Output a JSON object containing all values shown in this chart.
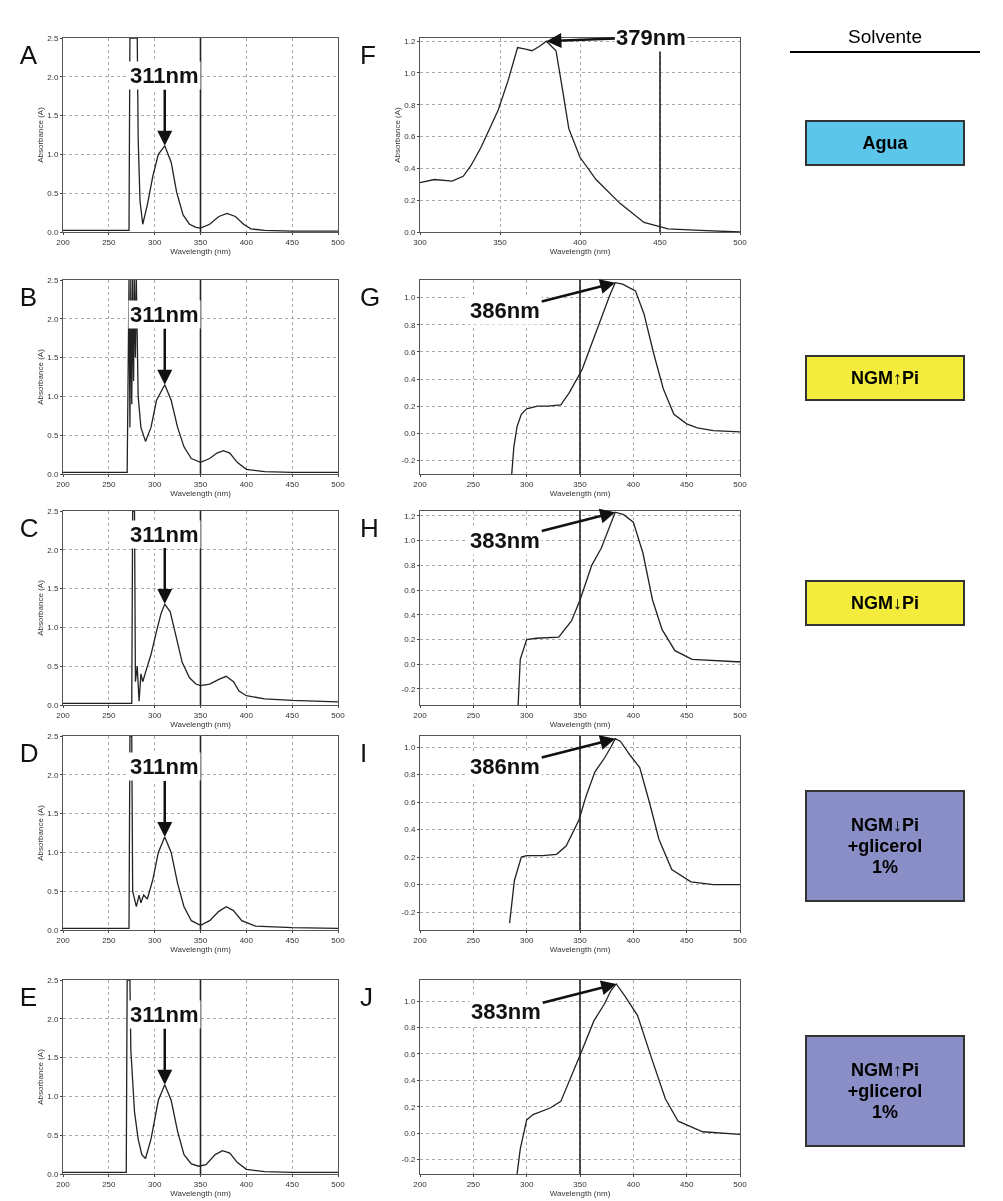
{
  "chart_data": [
    {
      "type": "line",
      "title": "A",
      "xlabel": "Wavelength (nm)",
      "ylabel": "Absorbance (A)",
      "xlim": [
        200,
        500
      ],
      "ylim": [
        0,
        2.5
      ],
      "xticks": [
        200,
        250,
        300,
        350,
        400,
        450,
        500
      ],
      "yticks": [
        {
          "value": 0,
          "label": "0.0"
        },
        0.5,
        {
          "value": 1,
          "label": "1.0"
        },
        1.5,
        {
          "value": 2,
          "label": "2.0"
        },
        2.5
      ],
      "grid": true,
      "marker": "none",
      "line_style": "solid",
      "ref_lines": [
        {
          "axis": "x",
          "value": 350,
          "color": "#222222"
        }
      ],
      "annotations": [
        {
          "text": "311nm",
          "x": 311,
          "y": 1.11
        }
      ],
      "series": [
        {
          "color": "#222222",
          "x": [
            200,
            230,
            260,
            272,
            273,
            274,
            281,
            282,
            284,
            287,
            292,
            298,
            304,
            311,
            318,
            324,
            331,
            338,
            345,
            350,
            360,
            370,
            379,
            388,
            397,
            405,
            420,
            450,
            500
          ],
          "values": [
            0.02,
            0.02,
            0.02,
            0.02,
            2.5,
            2.5,
            2.5,
            1.2,
            0.4,
            0.1,
            0.35,
            0.72,
            1.0,
            1.11,
            0.9,
            0.51,
            0.22,
            0.1,
            0.06,
            0.05,
            0.1,
            0.2,
            0.24,
            0.2,
            0.1,
            0.04,
            0.02,
            0.01,
            0.01
          ]
        }
      ]
    },
    {
      "type": "line",
      "title": "B",
      "xlabel": "Wavelength (nm)",
      "ylabel": "Absorbance (A)",
      "xlim": [
        200,
        500
      ],
      "ylim": [
        0,
        2.5
      ],
      "xticks": [
        200,
        250,
        300,
        350,
        400,
        450,
        500
      ],
      "yticks": [
        {
          "value": 0,
          "label": "0.0"
        },
        0.5,
        {
          "value": 1,
          "label": "1.0"
        },
        1.5,
        {
          "value": 2,
          "label": "2.0"
        },
        2.5
      ],
      "grid": true,
      "marker": "none",
      "line_style": "solid",
      "ref_lines": [
        {
          "axis": "x",
          "value": 350,
          "color": "#222222"
        }
      ],
      "annotations": [
        {
          "text": "311nm",
          "x": 311,
          "y": 1.15
        }
      ],
      "series": [
        {
          "color": "#222222",
          "x": [
            200,
            240,
            270,
            272,
            273,
            274,
            275,
            276,
            277,
            278,
            279,
            280,
            282,
            285,
            290,
            296,
            302,
            311,
            318,
            325,
            332,
            340,
            350,
            360,
            368,
            375,
            382,
            390,
            400,
            420,
            450,
            500
          ],
          "values": [
            0.02,
            0.02,
            0.02,
            2.5,
            0.6,
            2.5,
            0.9,
            2.5,
            1.2,
            2.5,
            1.5,
            2.5,
            1.0,
            0.6,
            0.42,
            0.6,
            0.95,
            1.15,
            0.95,
            0.6,
            0.35,
            0.2,
            0.15,
            0.2,
            0.27,
            0.3,
            0.27,
            0.15,
            0.06,
            0.03,
            0.02,
            0.02
          ]
        }
      ]
    },
    {
      "type": "line",
      "title": "C",
      "xlabel": "Wavelength (nm)",
      "ylabel": "Absorbance (A)",
      "xlim": [
        200,
        500
      ],
      "ylim": [
        0,
        2.5
      ],
      "xticks": [
        200,
        250,
        300,
        350,
        400,
        450,
        500
      ],
      "yticks": [
        {
          "value": 0,
          "label": "0.0"
        },
        0.5,
        {
          "value": 1,
          "label": "1.0"
        },
        1.5,
        {
          "value": 2,
          "label": "2.0"
        },
        2.5
      ],
      "grid": true,
      "marker": "none",
      "line_style": "solid",
      "ref_lines": [
        {
          "axis": "x",
          "value": 350,
          "color": "#222222"
        }
      ],
      "annotations": [
        {
          "text": "311nm",
          "x": 311,
          "y": 1.3
        }
      ],
      "series": [
        {
          "color": "#222222",
          "x": [
            200,
            240,
            275,
            276,
            278,
            279,
            281,
            283,
            285,
            287,
            290,
            296,
            302,
            307,
            311,
            317,
            323,
            330,
            338,
            345,
            350,
            360,
            370,
            378,
            386,
            392,
            400,
            420,
            450,
            500
          ],
          "values": [
            0.02,
            0.02,
            0.02,
            2.5,
            2.5,
            0.3,
            0.5,
            0.05,
            0.4,
            0.3,
            0.42,
            0.65,
            0.95,
            1.18,
            1.3,
            1.2,
            0.9,
            0.55,
            0.35,
            0.27,
            0.25,
            0.27,
            0.33,
            0.37,
            0.3,
            0.18,
            0.12,
            0.08,
            0.06,
            0.04
          ]
        }
      ]
    },
    {
      "type": "line",
      "title": "D",
      "xlabel": "Wavelength (nm)",
      "ylabel": "Absorbance (A)",
      "xlim": [
        200,
        500
      ],
      "ylim": [
        0,
        2.5
      ],
      "xticks": [
        200,
        250,
        300,
        350,
        400,
        450,
        500
      ],
      "yticks": [
        {
          "value": 0,
          "label": "0.0"
        },
        0.5,
        {
          "value": 1,
          "label": "1.0"
        },
        1.5,
        {
          "value": 2,
          "label": "2.0"
        },
        2.5
      ],
      "grid": true,
      "marker": "none",
      "line_style": "solid",
      "ref_lines": [
        {
          "axis": "x",
          "value": 350,
          "color": "#222222"
        }
      ],
      "annotations": [
        {
          "text": "311nm",
          "x": 311,
          "y": 1.2
        }
      ],
      "series": [
        {
          "color": "#222222",
          "x": [
            200,
            240,
            272,
            273,
            275,
            276,
            280,
            283,
            285,
            288,
            292,
            298,
            304,
            311,
            318,
            325,
            332,
            340,
            350,
            360,
            370,
            378,
            386,
            395,
            410,
            450,
            500
          ],
          "values": [
            0.02,
            0.02,
            0.02,
            2.5,
            2.5,
            0.5,
            0.3,
            0.45,
            0.35,
            0.45,
            0.4,
            0.65,
            1.0,
            1.2,
            1.0,
            0.6,
            0.3,
            0.12,
            0.06,
            0.12,
            0.24,
            0.3,
            0.25,
            0.12,
            0.05,
            0.03,
            0.02
          ]
        }
      ]
    },
    {
      "type": "line",
      "title": "E",
      "xlabel": "Wavelength (nm)",
      "ylabel": "Absorbance (A)",
      "xlim": [
        200,
        500
      ],
      "ylim": [
        0,
        2.5
      ],
      "xticks": [
        200,
        250,
        300,
        350,
        400,
        450,
        500
      ],
      "yticks": [
        {
          "value": 0,
          "label": "0.0"
        },
        0.5,
        {
          "value": 1,
          "label": "1.0"
        },
        1.5,
        {
          "value": 2,
          "label": "2.0"
        },
        2.5
      ],
      "grid": true,
      "marker": "none",
      "line_style": "solid",
      "ref_lines": [
        {
          "axis": "x",
          "value": 350,
          "color": "#222222"
        }
      ],
      "annotations": [
        {
          "text": "311nm",
          "x": 311,
          "y": 1.15
        }
      ],
      "series": [
        {
          "color": "#222222",
          "x": [
            200,
            240,
            269,
            270,
            273,
            274,
            278,
            282,
            286,
            290,
            296,
            304,
            311,
            318,
            325,
            332,
            340,
            348,
            356,
            366,
            374,
            382,
            390,
            400,
            420,
            450,
            500
          ],
          "values": [
            0.02,
            0.02,
            0.02,
            2.5,
            2.5,
            1.6,
            0.8,
            0.45,
            0.25,
            0.2,
            0.45,
            0.95,
            1.15,
            0.95,
            0.55,
            0.25,
            0.13,
            0.1,
            0.12,
            0.25,
            0.3,
            0.27,
            0.15,
            0.06,
            0.03,
            0.02,
            0.02
          ]
        }
      ]
    },
    {
      "type": "line",
      "title": "F",
      "xlabel": "Wavelength (nm)",
      "ylabel": "Absorbance (A)",
      "xlim": [
        300,
        500
      ],
      "ylim": [
        0,
        1.22
      ],
      "xticks": [
        300,
        350,
        400,
        450,
        500
      ],
      "yticks": [
        {
          "value": 0,
          "label": "0.0"
        },
        0.2,
        0.4,
        0.6,
        0.8,
        {
          "value": 1,
          "label": "1.0"
        },
        1.2
      ],
      "grid": true,
      "marker": "none",
      "line_style": "solid",
      "ref_lines": [
        {
          "axis": "x",
          "value": 450,
          "color": "#222222"
        }
      ],
      "annotations": [
        {
          "text": "379nm",
          "x": 379,
          "y": 1.2
        }
      ],
      "series": [
        {
          "color": "#222222",
          "x": [
            300,
            309,
            320,
            327,
            332,
            338,
            344,
            349,
            355,
            361,
            366,
            370,
            375,
            379,
            385,
            389,
            393,
            400,
            410,
            425,
            440,
            455,
            475,
            500
          ],
          "values": [
            0.31,
            0.33,
            0.32,
            0.35,
            0.42,
            0.53,
            0.66,
            0.77,
            0.95,
            1.16,
            1.15,
            1.14,
            1.17,
            1.2,
            1.14,
            0.9,
            0.65,
            0.47,
            0.33,
            0.18,
            0.06,
            0.02,
            0.01,
            0.0
          ]
        }
      ]
    },
    {
      "type": "line",
      "title": "G",
      "xlabel": "Wavelength (nm)",
      "xlim": [
        200,
        500
      ],
      "ylim": [
        -0.3,
        1.13
      ],
      "xticks": [
        200,
        250,
        300,
        350,
        400,
        450,
        500
      ],
      "yticks": [
        -0.2,
        {
          "value": 0,
          "label": "0.0"
        },
        0.2,
        0.4,
        0.6,
        0.8,
        {
          "value": 1,
          "label": "1.0"
        }
      ],
      "grid": true,
      "marker": "none",
      "line_style": "solid",
      "ref_lines": [
        {
          "axis": "x",
          "value": 350,
          "color": "#222222"
        }
      ],
      "annotations": [
        {
          "text": "386nm",
          "x": 383,
          "y": 1.11
        }
      ],
      "series": [
        {
          "color": "#222222",
          "x": [
            286,
            288,
            291,
            295,
            300,
            310,
            320,
            332,
            340,
            352,
            360,
            370,
            378,
            383,
            390,
            397,
            402,
            410,
            419,
            428,
            438,
            450,
            460,
            475,
            500
          ],
          "values": [
            -0.3,
            -0.1,
            0.05,
            0.14,
            0.18,
            0.2,
            0.2,
            0.21,
            0.3,
            0.47,
            0.64,
            0.85,
            1.02,
            1.11,
            1.1,
            1.07,
            1.05,
            0.88,
            0.59,
            0.33,
            0.14,
            0.07,
            0.04,
            0.02,
            0.01
          ]
        }
      ]
    },
    {
      "type": "line",
      "title": "H",
      "xlabel": "Wavelength (nm)",
      "xlim": [
        200,
        500
      ],
      "ylim": [
        -0.33,
        1.24
      ],
      "xticks": [
        200,
        250,
        300,
        350,
        400,
        450,
        500
      ],
      "yticks": [
        -0.2,
        {
          "value": 0,
          "label": "0.0"
        },
        0.2,
        0.4,
        0.6,
        0.8,
        {
          "value": 1,
          "label": "1.0"
        },
        1.2
      ],
      "grid": true,
      "marker": "none",
      "line_style": "solid",
      "ref_lines": [
        {
          "axis": "x",
          "value": 350,
          "color": "#222222"
        }
      ],
      "annotations": [
        {
          "text": "383nm",
          "x": 383,
          "y": 1.23
        }
      ],
      "series": [
        {
          "color": "#222222",
          "x": [
            292,
            294,
            300,
            309,
            330,
            342,
            350,
            361,
            370,
            383,
            391,
            400,
            409,
            418,
            427,
            439,
            455,
            497,
            500
          ],
          "values": [
            -0.33,
            0.04,
            0.2,
            0.21,
            0.22,
            0.35,
            0.52,
            0.8,
            0.94,
            1.23,
            1.21,
            1.15,
            0.9,
            0.52,
            0.28,
            0.11,
            0.04,
            0.02,
            0.02
          ]
        }
      ]
    },
    {
      "type": "line",
      "title": "I",
      "xlabel": "Wavelength (nm)",
      "xlim": [
        200,
        500
      ],
      "ylim": [
        -0.33,
        1.08
      ],
      "xticks": [
        200,
        250,
        300,
        350,
        400,
        450,
        500
      ],
      "yticks": [
        -0.2,
        {
          "value": 0,
          "label": "0.0"
        },
        0.2,
        0.4,
        0.6,
        0.8,
        {
          "value": 1,
          "label": "1.0"
        }
      ],
      "grid": true,
      "marker": "none",
      "line_style": "solid",
      "ref_lines": [
        {
          "axis": "x",
          "value": 350,
          "color": "#222222"
        }
      ],
      "annotations": [
        {
          "text": "386nm",
          "x": 383,
          "y": 1.06
        }
      ],
      "series": [
        {
          "color": "#222222",
          "x": [
            284,
            288.5,
            295,
            300,
            315,
            328,
            337,
            349,
            356,
            364,
            373,
            379,
            383,
            388,
            397,
            406,
            415,
            424,
            436,
            454,
            475,
            500
          ],
          "values": [
            -0.28,
            0.03,
            0.2,
            0.21,
            0.21,
            0.22,
            0.28,
            0.47,
            0.65,
            0.82,
            0.92,
            1.0,
            1.06,
            1.04,
            0.94,
            0.85,
            0.6,
            0.33,
            0.11,
            0.02,
            0.0,
            0.0
          ]
        }
      ]
    },
    {
      "type": "line",
      "title": "J",
      "xlabel": "Wavelength (nm)",
      "xlim": [
        200,
        500
      ],
      "ylim": [
        -0.31,
        1.16
      ],
      "xticks": [
        200,
        250,
        300,
        350,
        400,
        450,
        500
      ],
      "yticks": [
        -0.2,
        {
          "value": 0,
          "label": "0.0"
        },
        0.2,
        0.4,
        0.6,
        0.8,
        {
          "value": 1,
          "label": "1.0"
        }
      ],
      "grid": true,
      "marker": "none",
      "line_style": "solid",
      "ref_lines": [
        {
          "axis": "x",
          "value": 350,
          "color": "#222222"
        }
      ],
      "annotations": [
        {
          "text": "383nm",
          "x": 384,
          "y": 1.13
        }
      ],
      "series": [
        {
          "color": "#222222",
          "x": [
            291,
            294,
            300,
            306,
            322,
            332,
            350,
            363,
            373,
            379,
            384,
            392,
            404,
            417,
            430,
            442,
            465,
            500
          ],
          "values": [
            -0.31,
            -0.12,
            0.1,
            0.14,
            0.19,
            0.24,
            0.59,
            0.85,
            0.98,
            1.08,
            1.13,
            1.04,
            0.89,
            0.57,
            0.26,
            0.09,
            0.01,
            -0.01
          ]
        }
      ]
    },
    {
      "type": "other",
      "title": "Solvente",
      "categories": [
        "Agua",
        "NGM↑Pi",
        "NGM↓Pi",
        "NGM↓Pi\n+glicerol\n1%",
        "NGM↑Pi\n+glicerol\n1%"
      ],
      "colors": [
        "#5cc6ea",
        "#f3ec3c",
        "#f3ec3c",
        "#8a8ec6",
        "#8a8ec6"
      ]
    }
  ]
}
